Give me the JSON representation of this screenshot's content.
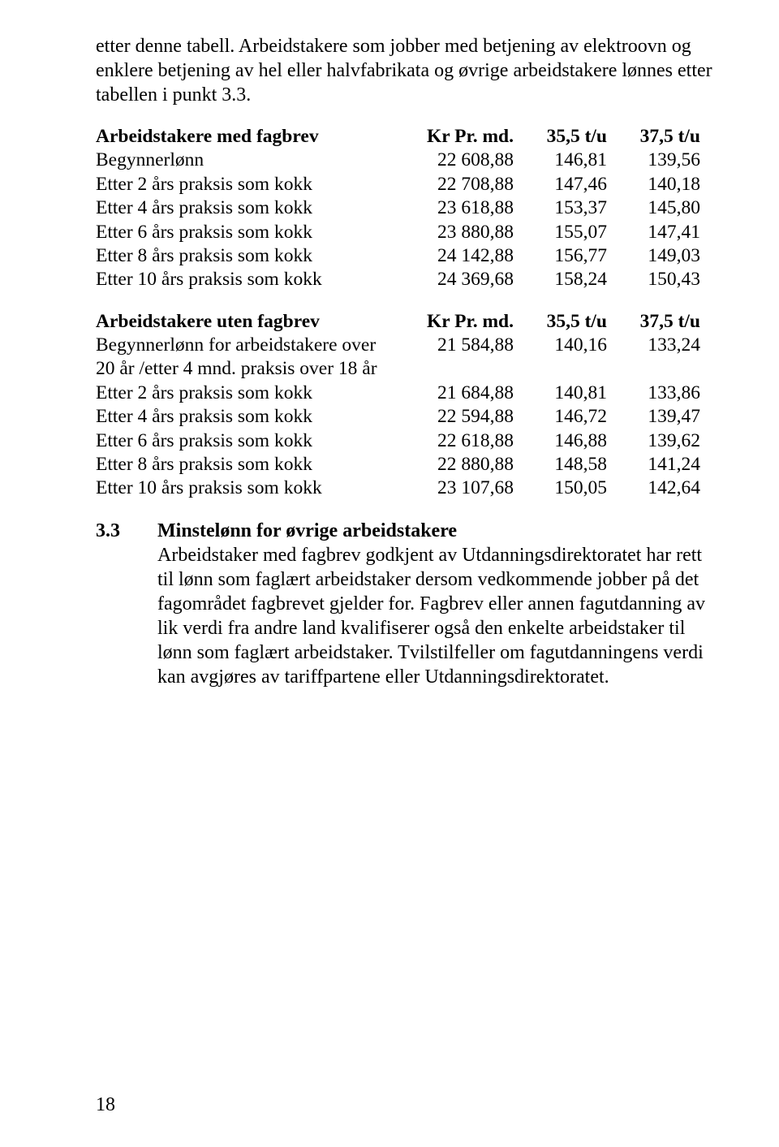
{
  "intro_paragraph": "etter denne tabell. Arbeidstakere som jobber med betjening av elektroovn og enklere betjening av hel eller halvfabrikata og øvrige arbeidstakere lønnes etter tabellen i punkt 3.3.",
  "table_fagbrev": {
    "header": {
      "label": "Arbeidstakere med fagbrev",
      "col1": "Kr Pr. md.",
      "col2": "35,5 t/u",
      "col3": "37,5 t/u"
    },
    "rows": [
      {
        "label": "Begynnerlønn",
        "v1": "22 608,88",
        "v2": "146,81",
        "v3": "139,56"
      },
      {
        "label": "Etter 2 års praksis som kokk",
        "v1": "22 708,88",
        "v2": "147,46",
        "v3": "140,18"
      },
      {
        "label": "Etter 4 års praksis som kokk",
        "v1": "23 618,88",
        "v2": "153,37",
        "v3": "145,80"
      },
      {
        "label": "Etter 6 års praksis som kokk",
        "v1": "23 880,88",
        "v2": "155,07",
        "v3": "147,41"
      },
      {
        "label": "Etter 8 års praksis som kokk",
        "v1": "24 142,88",
        "v2": "156,77",
        "v3": "149,03"
      },
      {
        "label": "Etter 10 års praksis som kokk",
        "v1": "24 369,68",
        "v2": "158,24",
        "v3": "150,43"
      }
    ]
  },
  "table_uten": {
    "header": {
      "label": "Arbeidstakere uten fagbrev",
      "col1": "Kr Pr. md.",
      "col2": "35,5 t/u",
      "col3": "37,5 t/u"
    },
    "first_row": {
      "label_line1": "Begynnerlønn for arbeidstakere over",
      "label_line2": "20 år /etter 4 mnd. praksis over 18 år",
      "v1": "21 584,88",
      "v2": "140,16",
      "v3": "133,24"
    },
    "rows": [
      {
        "label": "Etter 2 års praksis som kokk",
        "v1": "21 684,88",
        "v2": "140,81",
        "v3": "133,86"
      },
      {
        "label": "Etter 4 års praksis som kokk",
        "v1": "22 594,88",
        "v2": "146,72",
        "v3": "139,47"
      },
      {
        "label": "Etter 6 års praksis som kokk",
        "v1": "22 618,88",
        "v2": "146,88",
        "v3": "139,62"
      },
      {
        "label": "Etter 8 års praksis som kokk",
        "v1": "22 880,88",
        "v2": "148,58",
        "v3": "141,24"
      },
      {
        "label": "Etter 10 års praksis som kokk",
        "v1": "23 107,68",
        "v2": "150,05",
        "v3": "142,64"
      }
    ]
  },
  "section": {
    "number": "3.3",
    "title": "Minstelønn for øvrige arbeidstakere",
    "body": "Arbeidstaker med fagbrev godkjent av Utdanningsdirektoratet har rett til lønn som faglært arbeidstaker dersom vedkommende jobber på det fagområdet fagbrevet gjelder for. Fagbrev eller annen fagutdanning av lik verdi fra andre land kvalifiserer også den enkelte arbeidstaker til lønn som faglært arbeidstaker. Tvilstilfeller om fagutdanningens verdi kan avgjøres av tariffpartene eller Utdanningsdirektoratet."
  },
  "page_number": "18"
}
